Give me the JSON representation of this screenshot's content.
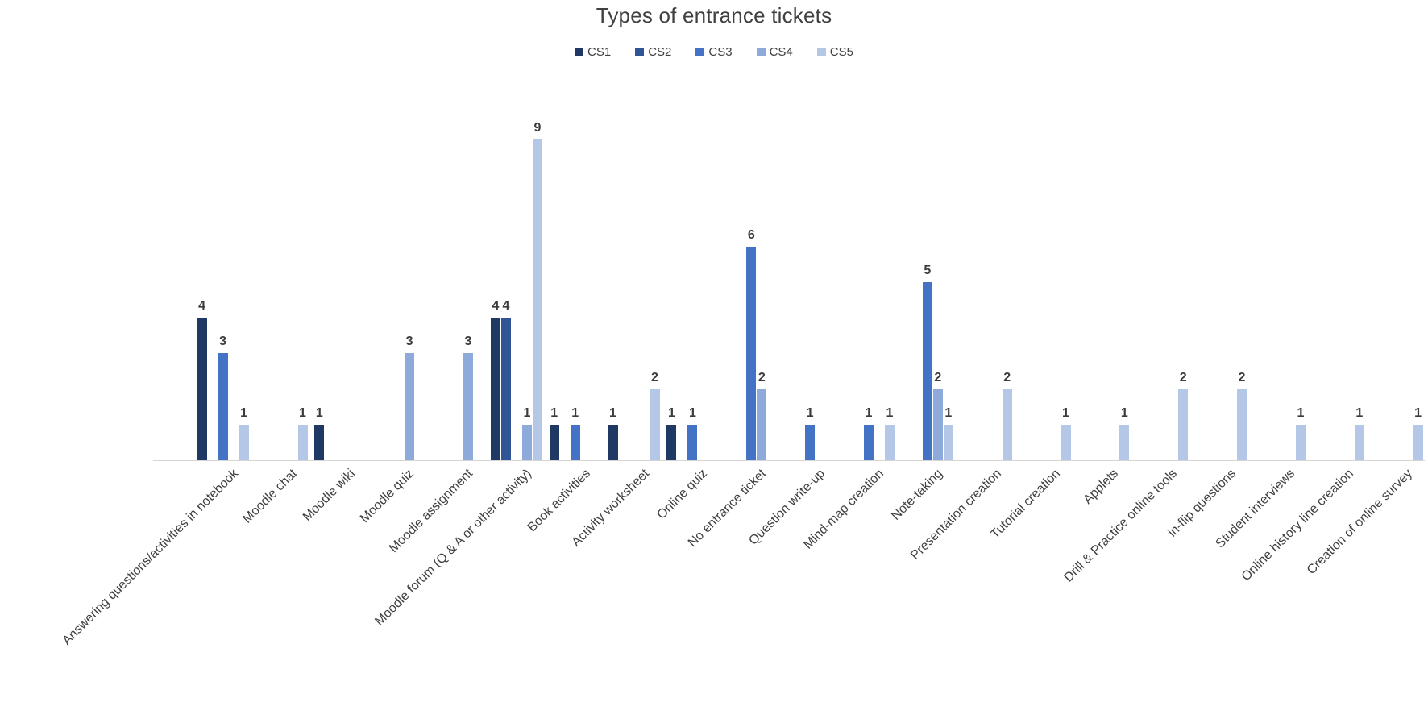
{
  "title": "Types of entrance tickets",
  "legend": [
    {
      "label": "CS1",
      "color": "#1F3864"
    },
    {
      "label": "CS2",
      "color": "#2F5597"
    },
    {
      "label": "CS3",
      "color": "#4472C4"
    },
    {
      "label": "CS4",
      "color": "#8EAADB"
    },
    {
      "label": "CS5",
      "color": "#B4C7E7"
    }
  ],
  "chart_data": {
    "type": "bar",
    "title": "Types of entrance tickets",
    "xlabel": "",
    "ylabel": "",
    "ylim": [
      0,
      9.5
    ],
    "grid": false,
    "legend_position": "top-center",
    "bar_labels_shown": true,
    "categories": [
      "Answering questions/activities in notebook",
      "Moodle chat",
      "Moodle wiki",
      "Moodle quiz",
      "Moodle assignment",
      "Moodle forum (Q & A or other activity)",
      "Book activities",
      "Activity worksheet",
      "Online quiz",
      "No entrance ticket",
      "Question write-up",
      "Mind-map creation",
      "Note-taking",
      "Presentation creation",
      "Tutorial creation",
      "Applets",
      "Drill & Practice online tools",
      "in-flip questions",
      "Student interviews",
      "Online history line creation",
      "Creation of online survey"
    ],
    "series": [
      {
        "name": "CS1",
        "color": "#1F3864",
        "values": [
          4,
          0,
          1,
          0,
          0,
          4,
          1,
          1,
          1,
          0,
          0,
          0,
          0,
          0,
          0,
          0,
          0,
          0,
          0,
          0,
          0
        ]
      },
      {
        "name": "CS2",
        "color": "#2F5597",
        "values": [
          0,
          0,
          0,
          0,
          0,
          4,
          0,
          0,
          0,
          0,
          0,
          0,
          0,
          0,
          0,
          0,
          0,
          0,
          0,
          0,
          0
        ]
      },
      {
        "name": "CS3",
        "color": "#4472C4",
        "values": [
          3,
          0,
          0,
          0,
          0,
          0,
          1,
          0,
          1,
          6,
          1,
          1,
          5,
          0,
          0,
          0,
          0,
          0,
          0,
          0,
          0
        ]
      },
      {
        "name": "CS4",
        "color": "#8EAADB",
        "values": [
          0,
          0,
          0,
          3,
          3,
          1,
          0,
          0,
          0,
          2,
          0,
          0,
          2,
          0,
          0,
          0,
          0,
          0,
          0,
          0,
          0
        ]
      },
      {
        "name": "CS5",
        "color": "#B4C7E7",
        "values": [
          1,
          1,
          0,
          0,
          0,
          9,
          0,
          2,
          0,
          0,
          0,
          1,
          1,
          2,
          1,
          1,
          2,
          2,
          1,
          1,
          1
        ]
      }
    ]
  }
}
